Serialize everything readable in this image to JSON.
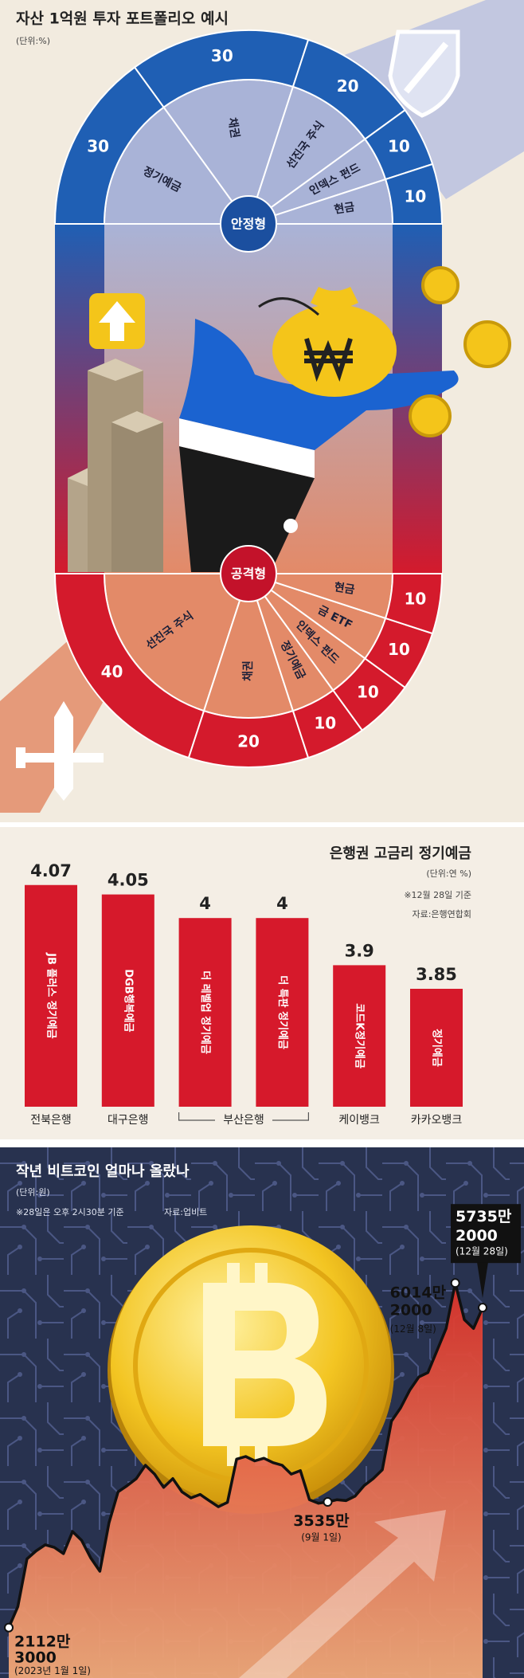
{
  "chart_data": [
    {
      "type": "pie",
      "title": "자산 1억원 투자 포트폴리오 예시",
      "unit": "(단위:%)",
      "name": "안정형",
      "half": "top",
      "categories": [
        "정기예금",
        "채권",
        "선진국 주식",
        "인덱스 펀드",
        "현금"
      ],
      "values": [
        30,
        30,
        20,
        10,
        10
      ],
      "color": "#1f5fb4",
      "inner_color": "#a9b3d7",
      "badge_color": "#1b4f9f"
    },
    {
      "type": "pie",
      "name": "공격형",
      "half": "bottom",
      "categories": [
        "선진국 주식",
        "채권",
        "정기예금",
        "인덱스 펀드",
        "금 ETF",
        "현금"
      ],
      "values": [
        40,
        20,
        10,
        10,
        10,
        10
      ],
      "color": "#d41a2c",
      "inner_color": "#e38a68",
      "badge_color": "#c3122a"
    },
    {
      "type": "bar",
      "title": "은행권 고금리 정기예금",
      "unit": "(단위:연 %)",
      "notes": [
        "※12월 28일 기준",
        "자료:은행연합회"
      ],
      "categories": [
        "JB 플러스 정기예금",
        "DGB행복예금",
        "더 레벨업 정기예금",
        "더 특판 정기예금",
        "코드K정기예금",
        "정기예금"
      ],
      "groups": [
        "전북은행",
        "대구은행",
        "부산은행",
        "부산은행",
        "케이뱅크",
        "카카오뱅크"
      ],
      "values": [
        4.07,
        4.05,
        4,
        4,
        3.9,
        3.85
      ],
      "color": "#d6192b",
      "ylim": [
        3.6,
        4.1
      ]
    },
    {
      "type": "line",
      "title": "작년 비트코인 얼마나 올랐나",
      "unit": "(단위:원)",
      "notes": [
        "※28일은 오후 2시30분 기준",
        "자료:업비트"
      ],
      "categories": [
        "(2023년 1월 1일)",
        null,
        null,
        null,
        null,
        null,
        null,
        null,
        null,
        null,
        null,
        null,
        null,
        null,
        null,
        null,
        null,
        null,
        null,
        null,
        null,
        null,
        null,
        null,
        null,
        null,
        null,
        null,
        null,
        null,
        null,
        null,
        null,
        null,
        null,
        "(9월 1일)",
        null,
        null,
        null,
        null,
        null,
        null,
        null,
        null,
        null,
        null,
        null,
        null,
        null,
        "(12월 8일)",
        null,
        null,
        "(12월 28일)"
      ],
      "values": [
        21123000,
        23500000,
        28900000,
        29800000,
        30500000,
        30200000,
        29500000,
        32000000,
        31000000,
        29000000,
        27500000,
        33000000,
        36500000,
        37200000,
        38000000,
        39500000,
        38500000,
        37000000,
        38000000,
        36500000,
        35800000,
        36200000,
        35500000,
        34800000,
        35300000,
        40200000,
        40500000,
        40000000,
        40300000,
        39800000,
        39500000,
        38500000,
        38900000,
        35600000,
        35200000,
        35350000,
        35600000,
        35500000,
        36000000,
        37200000,
        38000000,
        39000000,
        44500000,
        46000000,
        48000000,
        49500000,
        50000000,
        52500000,
        55000000,
        60142000,
        56000000,
        55000000,
        57352000
      ],
      "value_labels": [
        "2112만 3000",
        null,
        null,
        null,
        null,
        null,
        null,
        null,
        null,
        null,
        null,
        null,
        null,
        null,
        null,
        null,
        null,
        null,
        null,
        null,
        null,
        null,
        null,
        null,
        null,
        null,
        null,
        null,
        null,
        null,
        null,
        null,
        null,
        null,
        null,
        "3535만",
        null,
        null,
        null,
        null,
        null,
        null,
        null,
        null,
        null,
        null,
        null,
        null,
        null,
        "6014만 2000",
        null,
        null,
        "5735만 2000"
      ],
      "color": "#111111",
      "area_color": "#d9322a",
      "ylim": [
        10000000,
        70000000
      ]
    }
  ]
}
